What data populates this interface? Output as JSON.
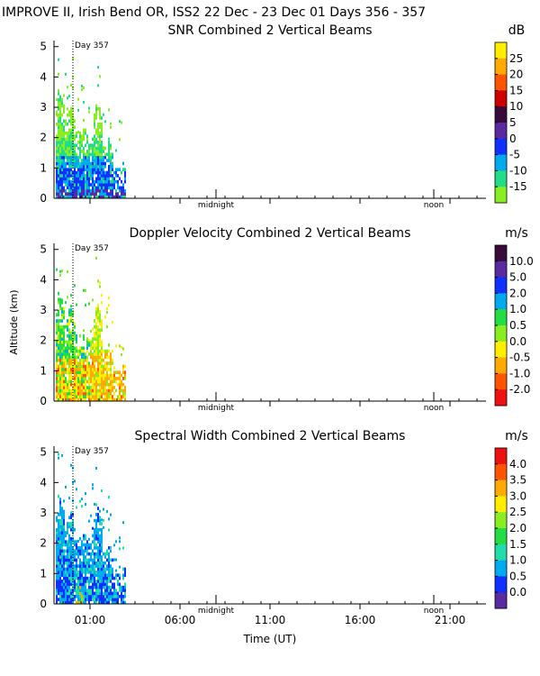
{
  "header": {
    "title": "IMPROVE II,  Irish Bend OR, ISS2  22 Dec - 23 Dec 01 Days 356 - 357"
  },
  "chart_data": [
    {
      "type": "heatmap",
      "title": "SNR Combined 2 Vertical Beams",
      "unit": "dB",
      "xlabel": "",
      "ylabel": "",
      "ylim": [
        0,
        5
      ],
      "y_ticks": [
        "0",
        "1",
        "2",
        "3",
        "4",
        "5"
      ],
      "x_marker_labels": [
        "Day 357",
        "midnight",
        "noon"
      ],
      "colorbar_labels": [
        "25",
        "20",
        "15",
        "10",
        "5",
        "0",
        "-5",
        "-10",
        "-15"
      ],
      "colorbar_colors": [
        "#ffee00",
        "#ffaa00",
        "#ff5500",
        "#cc0000",
        "#3a0a3a",
        "#5a2aa0",
        "#1030ff",
        "#00aaee",
        "#22dd88",
        "#88ee22"
      ]
    },
    {
      "type": "heatmap",
      "title": "Doppler Velocity Combined 2 Vertical Beams",
      "unit": "m/s",
      "xlabel": "",
      "ylabel": "Altitude (km)",
      "ylim": [
        0,
        5
      ],
      "y_ticks": [
        "0",
        "1",
        "2",
        "3",
        "4",
        "5"
      ],
      "x_marker_labels": [
        "Day 357",
        "midnight",
        "noon"
      ],
      "colorbar_labels": [
        "10.0",
        "5.0",
        "2.0",
        "1.0",
        "0.5",
        "0.0",
        "-0.5",
        "-1.0",
        "-2.0"
      ],
      "colorbar_colors": [
        "#3a0a3a",
        "#5a2aa0",
        "#1030ff",
        "#00aaee",
        "#22dd44",
        "#88ee22",
        "#ffee00",
        "#ffaa00",
        "#ff5500",
        "#ee1111"
      ]
    },
    {
      "type": "heatmap",
      "title": "Spectral Width Combined 2 Vertical Beams",
      "unit": "m/s",
      "xlabel": "Time (UT)",
      "ylabel": "",
      "ylim": [
        0,
        5
      ],
      "y_ticks": [
        "0",
        "1",
        "2",
        "3",
        "4",
        "5"
      ],
      "x_ticks": [
        "01:00",
        "06:00",
        "11:00",
        "16:00",
        "21:00"
      ],
      "x_marker_labels": [
        "Day 357",
        "midnight",
        "noon"
      ],
      "colorbar_labels": [
        "4.0",
        "3.5",
        "3.0",
        "2.5",
        "2.0",
        "1.5",
        "1.0",
        "0.5",
        "0.0"
      ],
      "colorbar_colors": [
        "#ee1111",
        "#ff5500",
        "#ffaa00",
        "#ffee00",
        "#88ee22",
        "#22dd44",
        "#22ddaa",
        "#00aaee",
        "#1030ff",
        "#5a2aa0"
      ]
    }
  ]
}
